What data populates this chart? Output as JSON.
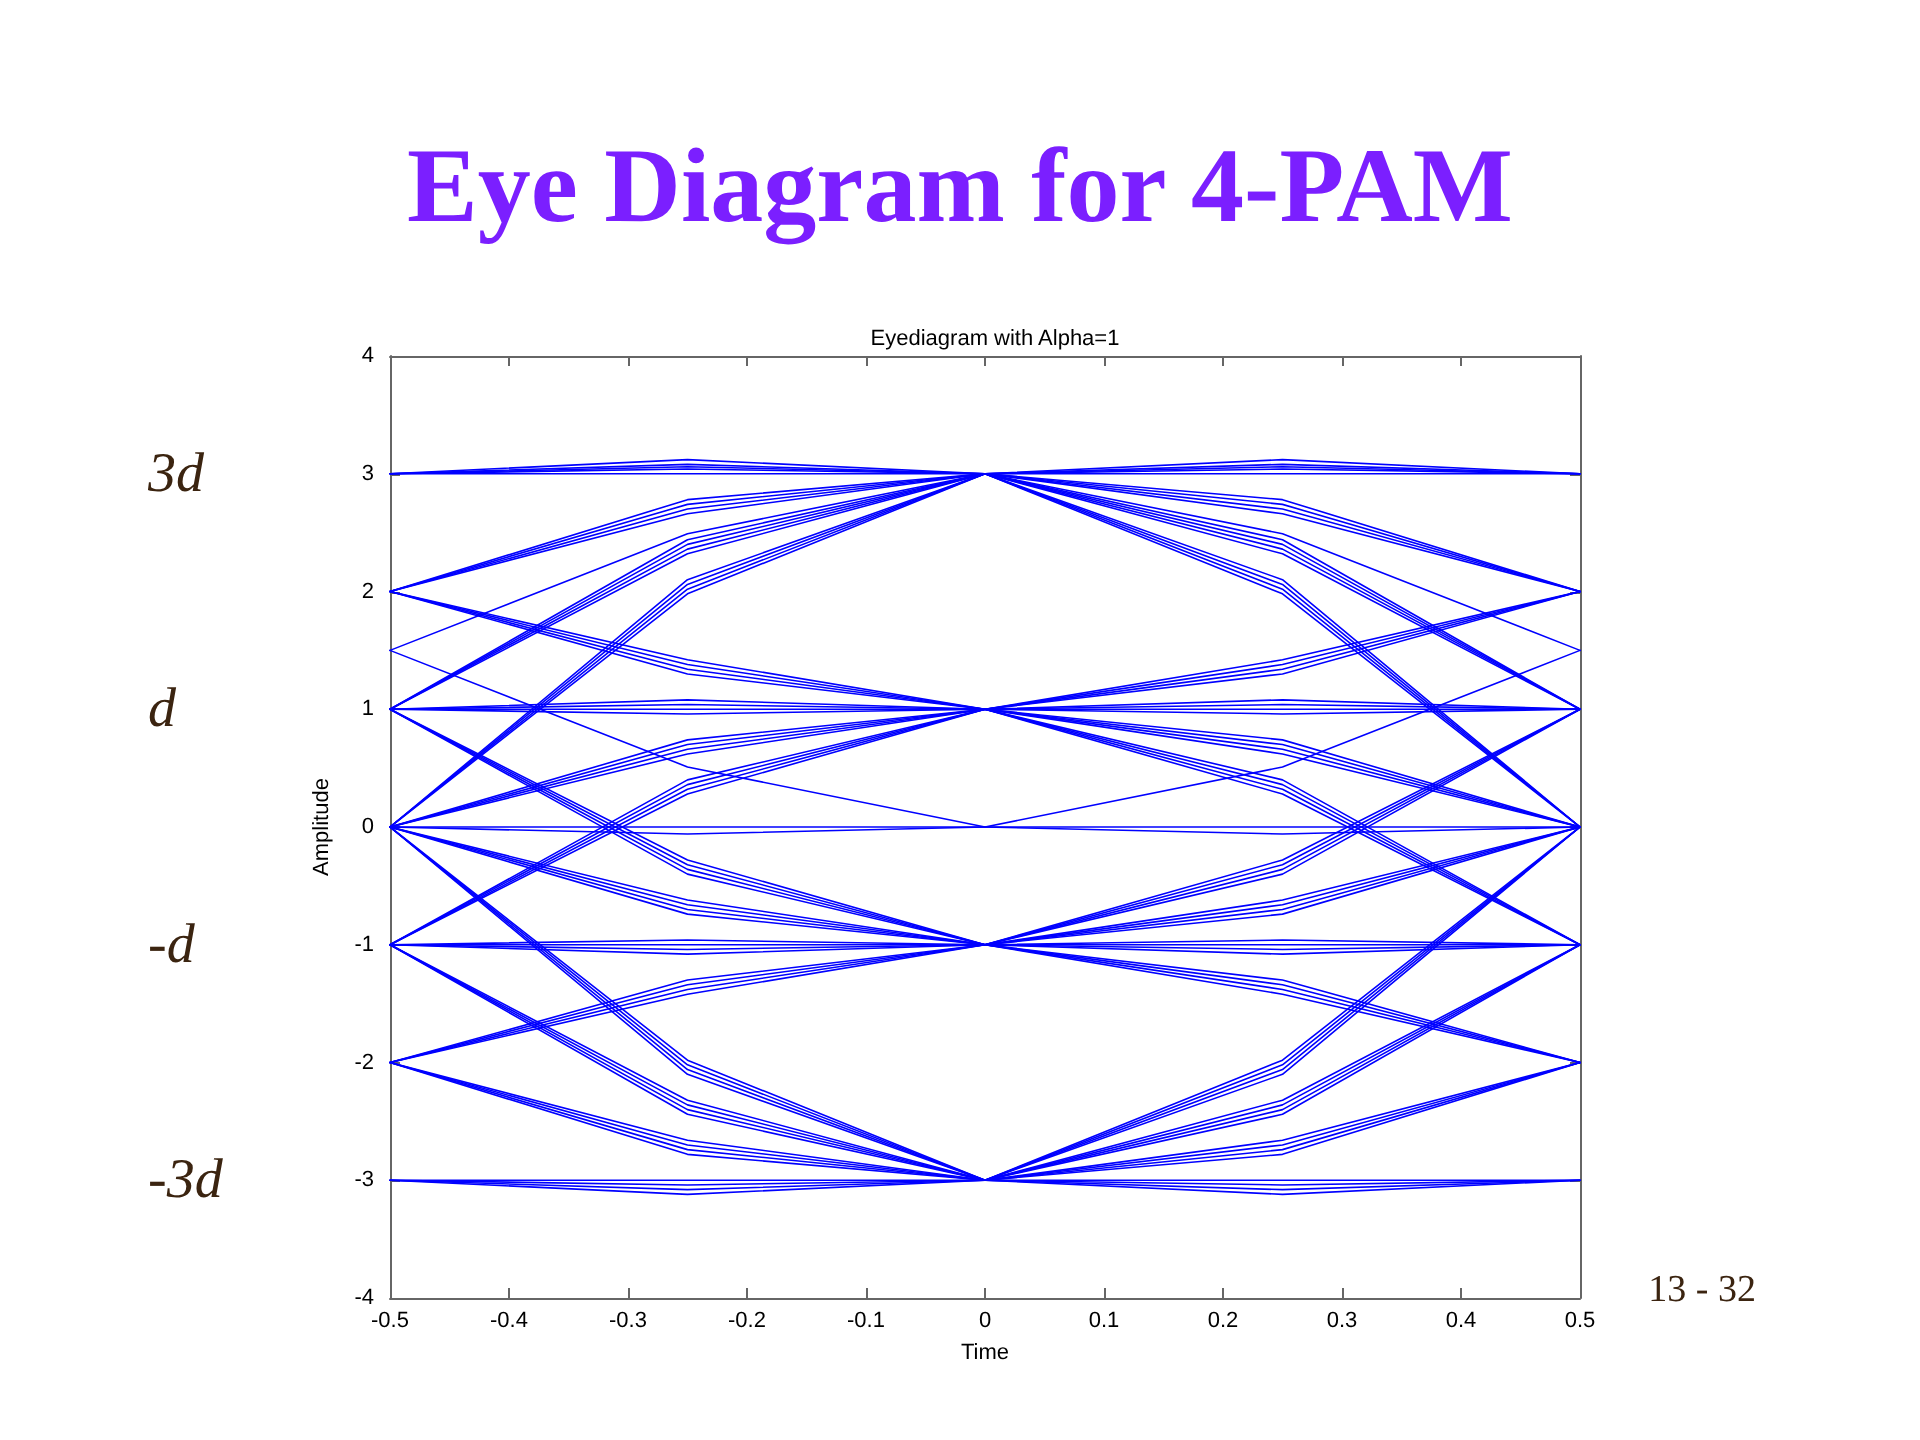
{
  "chart_data": {
    "type": "line",
    "title": "Eye Diagram for 4-PAM",
    "subtitle": "Eyediagram with Alpha=1",
    "xlabel": "Time",
    "ylabel": "Amplitude",
    "annotations": [
      "3d",
      "d",
      "-d",
      "-3d",
      "13 - 32"
    ],
    "x": [
      -0.5,
      -0.25,
      0,
      0.25,
      0.5
    ],
    "xlim": [
      -0.5,
      0.5
    ],
    "xticks": [
      -0.5,
      -0.4,
      -0.3,
      -0.2,
      -0.1,
      0,
      0.1,
      0.2,
      0.3,
      0.4,
      0.5
    ],
    "ylim": [
      -4,
      4
    ],
    "yticks": [
      -4,
      -3,
      -2,
      -1,
      0,
      1,
      2,
      3,
      4
    ],
    "grid": false,
    "line_style": "solid",
    "series": [
      {
        "color": "#0000ff",
        "values": [
          3,
          3.0,
          3,
          3.0,
          3
        ]
      },
      {
        "color": "#0000ff",
        "values": [
          3,
          3.04,
          3,
          2.66,
          2
        ]
      },
      {
        "color": "#0000ff",
        "values": [
          3,
          3.08,
          3,
          2.32,
          1
        ]
      },
      {
        "color": "#0000ff",
        "values": [
          3,
          3.12,
          3,
          1.98,
          0
        ]
      },
      {
        "color": "#0000ff",
        "values": [
          2,
          1.3,
          1,
          1.3,
          2
        ]
      },
      {
        "color": "#0000ff",
        "values": [
          2,
          1.34,
          1,
          0.96,
          1
        ]
      },
      {
        "color": "#0000ff",
        "values": [
          2,
          1.38,
          1,
          0.62,
          0
        ]
      },
      {
        "color": "#0000ff",
        "values": [
          2,
          1.42,
          1,
          0.28,
          -1
        ]
      },
      {
        "color": "#0000ff",
        "values": [
          1,
          -0.4,
          -1,
          -0.4,
          1
        ]
      },
      {
        "color": "#0000ff",
        "values": [
          1,
          -0.36,
          -1,
          -0.74,
          0
        ]
      },
      {
        "color": "#0000ff",
        "values": [
          1,
          -0.32,
          -1,
          -1.08,
          -1
        ]
      },
      {
        "color": "#0000ff",
        "values": [
          1,
          -0.28,
          -1,
          -1.42,
          -2
        ]
      },
      {
        "color": "#0000ff",
        "values": [
          0,
          -2.1,
          -3,
          -2.1,
          0
        ]
      },
      {
        "color": "#0000ff",
        "values": [
          0,
          -2.06,
          -3,
          -2.44,
          -1
        ]
      },
      {
        "color": "#0000ff",
        "values": [
          0,
          -2.02,
          -3,
          -2.78,
          -2
        ]
      },
      {
        "color": "#0000ff",
        "values": [
          0,
          -1.98,
          -3,
          -3.12,
          -3
        ]
      },
      {
        "color": "#0000ff",
        "values": [
          2,
          2.66,
          3,
          3.04,
          3
        ]
      },
      {
        "color": "#0000ff",
        "values": [
          2,
          2.7,
          3,
          2.7,
          2
        ]
      },
      {
        "color": "#0000ff",
        "values": [
          2,
          2.74,
          3,
          2.36,
          1
        ]
      },
      {
        "color": "#0000ff",
        "values": [
          2,
          2.78,
          3,
          2.02,
          0
        ]
      },
      {
        "color": "#0000ff",
        "values": [
          1,
          0.96,
          1,
          1.34,
          2
        ]
      },
      {
        "color": "#0000ff",
        "values": [
          1,
          1,
          1,
          1,
          1
        ]
      },
      {
        "color": "#0000ff",
        "values": [
          1,
          1.04,
          1,
          0.66,
          0
        ]
      },
      {
        "color": "#0000ff",
        "values": [
          1,
          1.08,
          1,
          0.32,
          -1
        ]
      },
      {
        "color": "#0000ff",
        "values": [
          0,
          -0.74,
          -1,
          -0.36,
          1
        ]
      },
      {
        "color": "#0000ff",
        "values": [
          0,
          -0.7,
          -1,
          -0.7,
          0
        ]
      },
      {
        "color": "#0000ff",
        "values": [
          0,
          -0.66,
          -1,
          -1.04,
          -1
        ]
      },
      {
        "color": "#0000ff",
        "values": [
          0,
          -0.62,
          -1,
          -1.38,
          -2
        ]
      },
      {
        "color": "#0000ff",
        "values": [
          -1,
          -2.44,
          -3,
          -2.06,
          0
        ]
      },
      {
        "color": "#0000ff",
        "values": [
          -1,
          -2.4,
          -3,
          -2.4,
          -1
        ]
      },
      {
        "color": "#0000ff",
        "values": [
          -1,
          -2.36,
          -3,
          -2.74,
          -2
        ]
      },
      {
        "color": "#0000ff",
        "values": [
          -1,
          -2.32,
          -3,
          -3.08,
          -3
        ]
      },
      {
        "color": "#0000ff",
        "values": [
          1,
          2.32,
          3,
          3.08,
          3
        ]
      },
      {
        "color": "#0000ff",
        "values": [
          1,
          2.36,
          3,
          2.74,
          2
        ]
      },
      {
        "color": "#0000ff",
        "values": [
          1,
          2.4,
          3,
          2.4,
          1
        ]
      },
      {
        "color": "#0000ff",
        "values": [
          1,
          2.44,
          3,
          2.06,
          0
        ]
      },
      {
        "color": "#0000ff",
        "values": [
          0,
          0.62,
          1,
          1.38,
          2
        ]
      },
      {
        "color": "#0000ff",
        "values": [
          0,
          0.66,
          1,
          1.04,
          1
        ]
      },
      {
        "color": "#0000ff",
        "values": [
          0,
          0.7,
          1,
          0.7,
          0
        ]
      },
      {
        "color": "#0000ff",
        "values": [
          0,
          0.74,
          1,
          0.36,
          -1
        ]
      },
      {
        "color": "#0000ff",
        "values": [
          -1,
          -1.08,
          -1,
          -0.32,
          1
        ]
      },
      {
        "color": "#0000ff",
        "values": [
          -1,
          -1.04,
          -1,
          -0.66,
          0
        ]
      },
      {
        "color": "#0000ff",
        "values": [
          -1,
          -1,
          -1,
          -1,
          -1
        ]
      },
      {
        "color": "#0000ff",
        "values": [
          -1,
          -0.96,
          -1,
          -1.34,
          -2
        ]
      },
      {
        "color": "#0000ff",
        "values": [
          -2,
          -2.78,
          -3,
          -2.02,
          0
        ]
      },
      {
        "color": "#0000ff",
        "values": [
          -2,
          -2.74,
          -3,
          -2.36,
          -1
        ]
      },
      {
        "color": "#0000ff",
        "values": [
          -2,
          -2.7,
          -3,
          -2.7,
          -2
        ]
      },
      {
        "color": "#0000ff",
        "values": [
          -2,
          -2.66,
          -3,
          -3.04,
          -3
        ]
      },
      {
        "color": "#0000ff",
        "values": [
          0,
          1.98,
          3,
          3.12,
          3
        ]
      },
      {
        "color": "#0000ff",
        "values": [
          0,
          2.02,
          3,
          2.78,
          2
        ]
      },
      {
        "color": "#0000ff",
        "values": [
          0,
          2.06,
          3,
          2.44,
          1
        ]
      },
      {
        "color": "#0000ff",
        "values": [
          0,
          2.1,
          3,
          2.1,
          0
        ]
      },
      {
        "color": "#0000ff",
        "values": [
          -1,
          0.28,
          1,
          1.42,
          2
        ]
      },
      {
        "color": "#0000ff",
        "values": [
          -1,
          0.32,
          1,
          1.08,
          1
        ]
      },
      {
        "color": "#0000ff",
        "values": [
          -1,
          0.36,
          1,
          0.74,
          0
        ]
      },
      {
        "color": "#0000ff",
        "values": [
          -1,
          0.4,
          1,
          0.4,
          -1
        ]
      },
      {
        "color": "#0000ff",
        "values": [
          -2,
          -1.42,
          -1,
          -0.28,
          1
        ]
      },
      {
        "color": "#0000ff",
        "values": [
          -2,
          -1.38,
          -1,
          -0.62,
          0
        ]
      },
      {
        "color": "#0000ff",
        "values": [
          -2,
          -1.34,
          -1,
          -0.96,
          -1
        ]
      },
      {
        "color": "#0000ff",
        "values": [
          -2,
          -1.3,
          -1,
          -1.3,
          -2
        ]
      },
      {
        "color": "#0000ff",
        "values": [
          -3,
          -3.12,
          -3,
          -1.98,
          0
        ]
      },
      {
        "color": "#0000ff",
        "values": [
          -3,
          -3.08,
          -3,
          -2.32,
          -1
        ]
      },
      {
        "color": "#0000ff",
        "values": [
          -3,
          -3.04,
          -3,
          -2.66,
          -2
        ]
      },
      {
        "color": "#0000ff",
        "values": [
          -3,
          -3,
          -3,
          -3,
          -3
        ]
      },
      {
        "color": "#0000ff",
        "values": [
          1.5,
          2.49,
          3,
          3.06,
          3
        ]
      },
      {
        "color": "#0000ff",
        "values": [
          1.5,
          0.51,
          0,
          -0.06,
          0
        ]
      },
      {
        "color": "#0000ff",
        "values": [
          0,
          -0.06,
          0,
          0.51,
          1.5
        ]
      },
      {
        "color": "#0000ff",
        "values": [
          3,
          3.06,
          3,
          2.49,
          1.5
        ]
      },
      {
        "color": "#0000ff",
        "values": [
          0,
          0,
          0,
          0,
          0
        ]
      }
    ]
  }
}
